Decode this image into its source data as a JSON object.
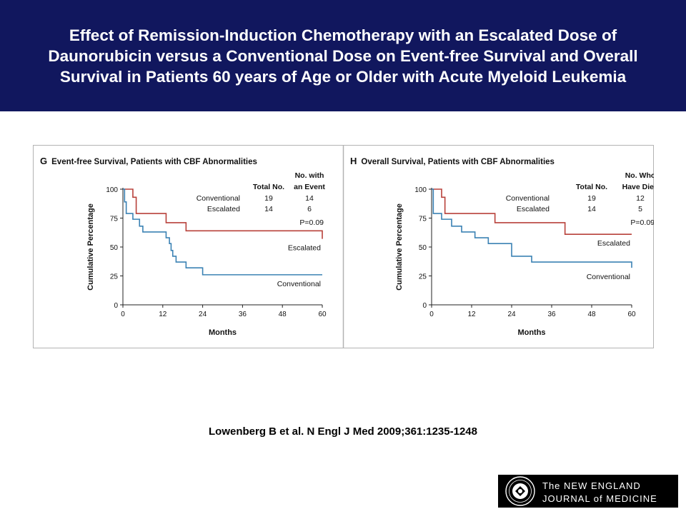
{
  "slide": {
    "title": "Effect of Remission-Induction Chemotherapy with an Escalated Dose of Daunorubicin versus a Conventional Dose on Event-free Survival and Overall Survival in Patients 60 years of Age or Older with Acute Myeloid Leukemia",
    "citation": "Lowenberg B et al. N Engl J Med 2009;361:1235-1248",
    "logo": {
      "line1": "The NEW ENGLAND",
      "line2": "JOURNAL of MEDICINE",
      "seal_icon": "nejm-seal-icon"
    }
  },
  "colors": {
    "banner": "#11175e",
    "conventional": "#3b82b4",
    "escalated": "#b8413a",
    "frame": "#b3b3b3"
  },
  "chart_data": [
    {
      "type": "line",
      "panel_letter": "G",
      "title": "Event-free Survival, Patients with CBF Abnormalities",
      "xlabel": "Months",
      "ylabel": "Cumulative Percentage",
      "xlim": [
        0,
        60
      ],
      "ylim": [
        0,
        100
      ],
      "xticks": [
        "0",
        "12",
        "24",
        "36",
        "48",
        "60"
      ],
      "yticks": [
        "0",
        "25",
        "50",
        "75",
        "100"
      ],
      "table": {
        "header_total": "Total No.",
        "header_event": [
          "No. with",
          "an Event"
        ],
        "rows": [
          {
            "group": "Conventional",
            "total": "19",
            "events": "14"
          },
          {
            "group": "Escalated",
            "total": "14",
            "events": "6"
          }
        ],
        "pvalue": "P=0.09"
      },
      "series": [
        {
          "name": "Escalated",
          "x": [
            0,
            3,
            4,
            13,
            19,
            60
          ],
          "y": [
            100,
            93,
            79,
            71,
            64,
            57
          ]
        },
        {
          "name": "Conventional",
          "x": [
            0,
            0.5,
            1,
            3,
            5,
            6,
            13,
            14,
            14.5,
            15,
            16,
            19,
            24,
            60
          ],
          "y": [
            100,
            89,
            79,
            74,
            68,
            63,
            58,
            53,
            47,
            42,
            37,
            32,
            26,
            26
          ]
        }
      ]
    },
    {
      "type": "line",
      "panel_letter": "H",
      "title": "Overall Survival, Patients with CBF Abnormalities",
      "xlabel": "Months",
      "ylabel": "Cumulative Percentage",
      "xlim": [
        0,
        60
      ],
      "ylim": [
        0,
        100
      ],
      "xticks": [
        "0",
        "12",
        "24",
        "36",
        "48",
        "60"
      ],
      "yticks": [
        "0",
        "25",
        "50",
        "75",
        "100"
      ],
      "table": {
        "header_total": "Total No.",
        "header_event": [
          "No. Who",
          "Have Died"
        ],
        "rows": [
          {
            "group": "Conventional",
            "total": "19",
            "events": "12"
          },
          {
            "group": "Escalated",
            "total": "14",
            "events": "5"
          }
        ],
        "pvalue": "P=0.09"
      },
      "series": [
        {
          "name": "Escalated",
          "x": [
            0,
            3,
            4,
            19,
            40,
            60
          ],
          "y": [
            100,
            93,
            79,
            71,
            61,
            61
          ]
        },
        {
          "name": "Conventional",
          "x": [
            0,
            0.5,
            3,
            6,
            9,
            13,
            17,
            24,
            30,
            60
          ],
          "y": [
            100,
            79,
            74,
            68,
            63,
            58,
            53,
            42,
            37,
            32
          ]
        }
      ]
    }
  ]
}
